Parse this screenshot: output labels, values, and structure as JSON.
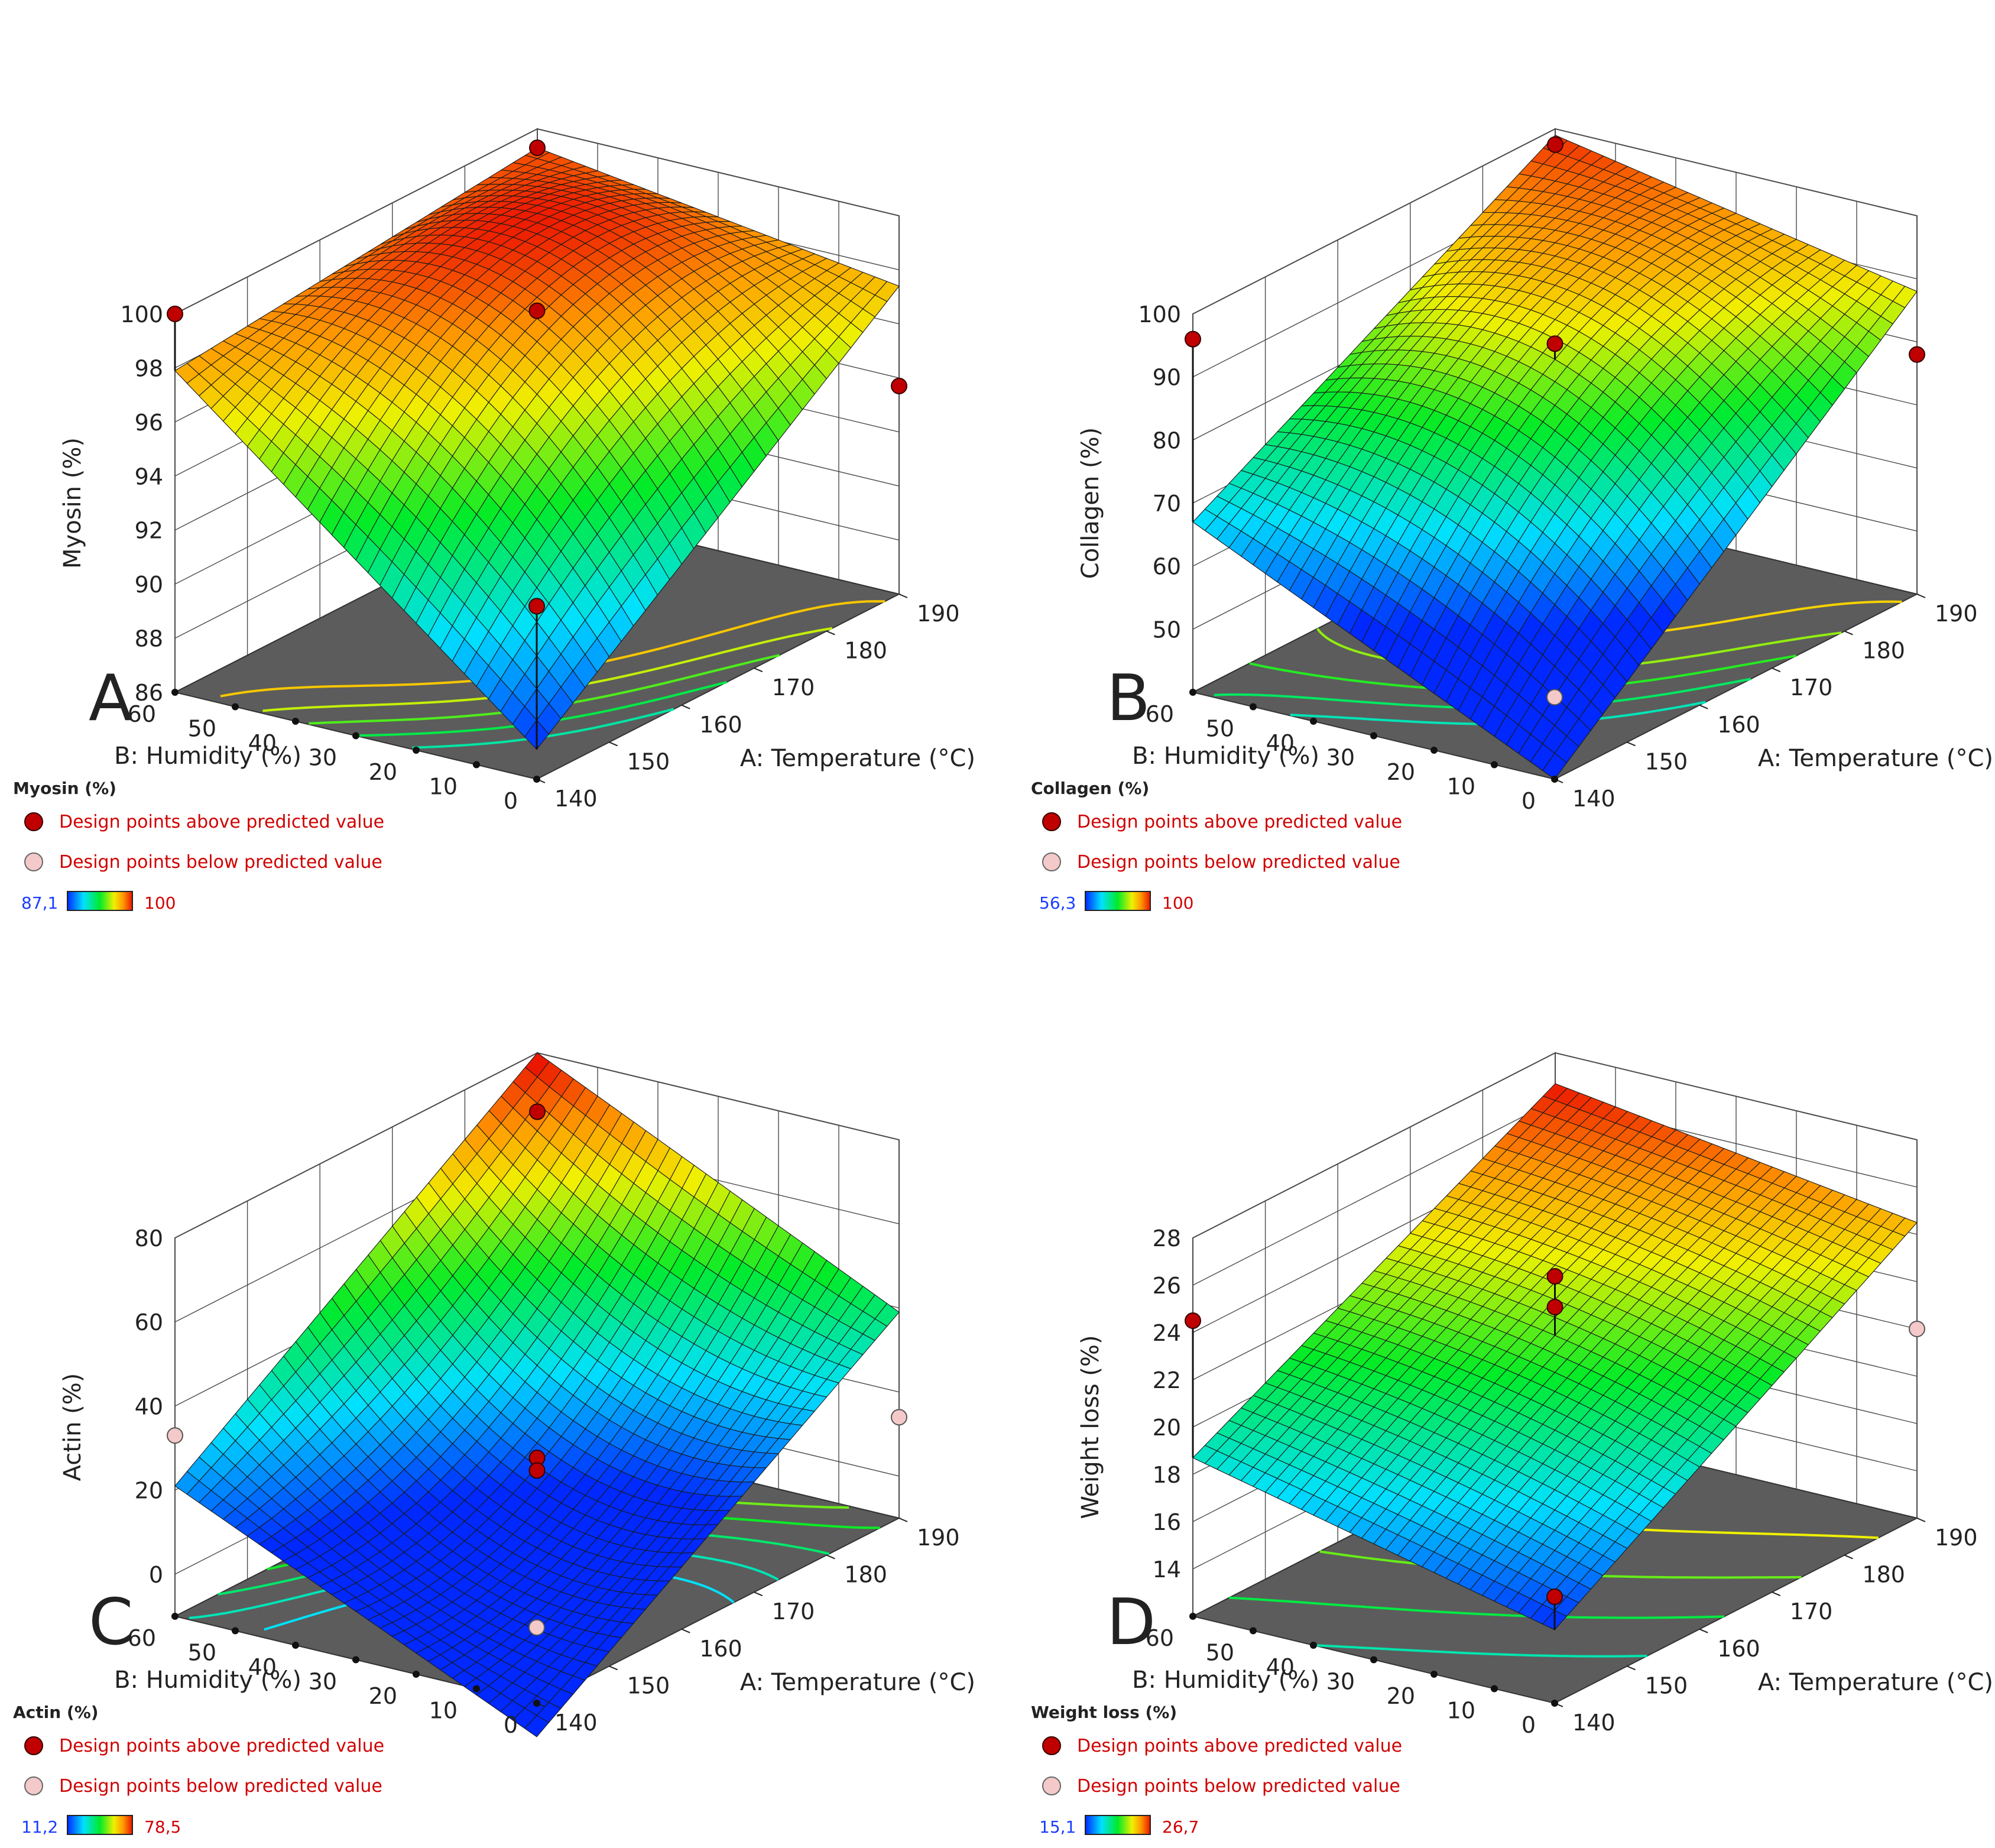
{
  "figure": {
    "legend_text": {
      "above": "Design points above predicted value",
      "below": "Design points below predicted value"
    },
    "colors": {
      "above_point": "#c00000",
      "below_point": "#f4c9c9",
      "floor": "#5c5c5c",
      "grid": "#4a4a4a",
      "scale_low_text": "#1a3cff",
      "scale_high_text": "#e00000"
    }
  },
  "chart_data": [
    {
      "type": "surface3d",
      "letter": "A",
      "title": "Myosin (%)",
      "zlabel": "Myosin (%)",
      "xlabel": "A: Temperature (°C)",
      "ylabel": "B: Humidity (%)",
      "xticks": [
        "140",
        "150",
        "160",
        "170",
        "180",
        "190"
      ],
      "yticks": [
        "0",
        "10",
        "20",
        "30",
        "40",
        "50",
        "60"
      ],
      "zticks": [
        "86",
        "88",
        "90",
        "92",
        "94",
        "96",
        "98",
        "100"
      ],
      "xlim": [
        140,
        190
      ],
      "ylim": [
        0,
        60
      ],
      "zlim": [
        86,
        100
      ],
      "corners": {
        "t140_h0": 87.1,
        "t190_h0": 97.4,
        "t140_h60": 97.9,
        "t190_h60": 99.3
      },
      "center": 98.8,
      "min_value": "87,1",
      "max_value": "100",
      "points_above": [
        [
          140,
          60,
          100
        ],
        [
          165,
          30,
          98.3
        ],
        [
          190,
          60,
          99.3
        ],
        [
          140,
          0,
          92.4
        ],
        [
          190,
          0,
          93.7
        ]
      ],
      "points_below": [],
      "contours": [
        91,
        92.5,
        94,
        95.5,
        97
      ]
    },
    {
      "type": "surface3d",
      "letter": "B",
      "title": "Collagen (%)",
      "zlabel": "Collagen (%)",
      "xlabel": "A: Temperature (°C)",
      "ylabel": "B: Humidity (%)",
      "xticks": [
        "140",
        "150",
        "160",
        "170",
        "180",
        "190"
      ],
      "yticks": [
        "0",
        "10",
        "20",
        "30",
        "40",
        "50",
        "60"
      ],
      "zticks": [
        "50",
        "60",
        "70",
        "80",
        "90",
        "100"
      ],
      "xlim": [
        140,
        190
      ],
      "ylim": [
        0,
        60
      ],
      "zlim": [
        40,
        100
      ],
      "corners": {
        "t140_h0": 40,
        "t190_h0": 88,
        "t140_h60": 67,
        "t190_h60": 99
      },
      "center": 85,
      "min_value": "56,3",
      "max_value": "100",
      "points_above": [
        [
          140,
          60,
          96
        ],
        [
          165,
          30,
          87.5
        ],
        [
          190,
          60,
          97.5
        ],
        [
          190,
          0,
          78
        ]
      ],
      "points_below": [
        [
          140,
          0,
          53
        ]
      ],
      "contours": [
        60,
        66,
        72,
        78,
        86
      ]
    },
    {
      "type": "surface3d",
      "letter": "C",
      "title": "Actin (%)",
      "zlabel": "Actin (%)",
      "xlabel": "A: Temperature (°C)",
      "ylabel": "B: Humidity (%)",
      "xticks": [
        "140",
        "150",
        "160",
        "170",
        "180",
        "190"
      ],
      "yticks": [
        "0",
        "10",
        "20",
        "30",
        "40",
        "50",
        "60"
      ],
      "zticks": [
        "0",
        "20",
        "40",
        "60",
        "80"
      ],
      "xlim": [
        140,
        190
      ],
      "ylim": [
        0,
        60
      ],
      "zlim": [
        -10,
        80
      ],
      "corners": {
        "t140_h0": -18,
        "t190_h0": 39,
        "t140_h60": 21,
        "t190_h60": 80
      },
      "center": 14,
      "min_value": "11,2",
      "max_value": "78,5",
      "points_above": [
        [
          165,
          30,
          16
        ],
        [
          165,
          30,
          13
        ],
        [
          190,
          60,
          66
        ]
      ],
      "points_below": [
        [
          140,
          60,
          33
        ],
        [
          140,
          0,
          8
        ],
        [
          190,
          0,
          14
        ]
      ],
      "contours": [
        13,
        20,
        28,
        36,
        44
      ]
    },
    {
      "type": "surface3d",
      "letter": "D",
      "title": "Weight loss (%)",
      "zlabel": "Weight loss (%)",
      "xlabel": "A: Temperature (°C)",
      "ylabel": "B: Humidity (%)",
      "xticks": [
        "140",
        "150",
        "160",
        "170",
        "180",
        "190"
      ],
      "yticks": [
        "0",
        "10",
        "20",
        "30",
        "40",
        "50",
        "60"
      ],
      "zticks": [
        "14",
        "16",
        "18",
        "20",
        "22",
        "24",
        "26",
        "28"
      ],
      "xlim": [
        140,
        190
      ],
      "ylim": [
        0,
        60
      ],
      "zlim": [
        12,
        28
      ],
      "corners": {
        "t140_h0": 15.1,
        "t190_h0": 24.5,
        "t140_h60": 18.7,
        "t190_h60": 26.7
      },
      "center": 21.8,
      "min_value": "15,1",
      "max_value": "26,7",
      "points_above": [
        [
          140,
          60,
          24.5
        ],
        [
          165,
          30,
          24.3
        ],
        [
          165,
          30,
          23
        ],
        [
          140,
          0,
          16.5
        ]
      ],
      "points_below": [
        [
          190,
          0,
          20
        ]
      ],
      "contours": [
        17.5,
        19.5,
        21.5,
        23.5
      ]
    }
  ]
}
